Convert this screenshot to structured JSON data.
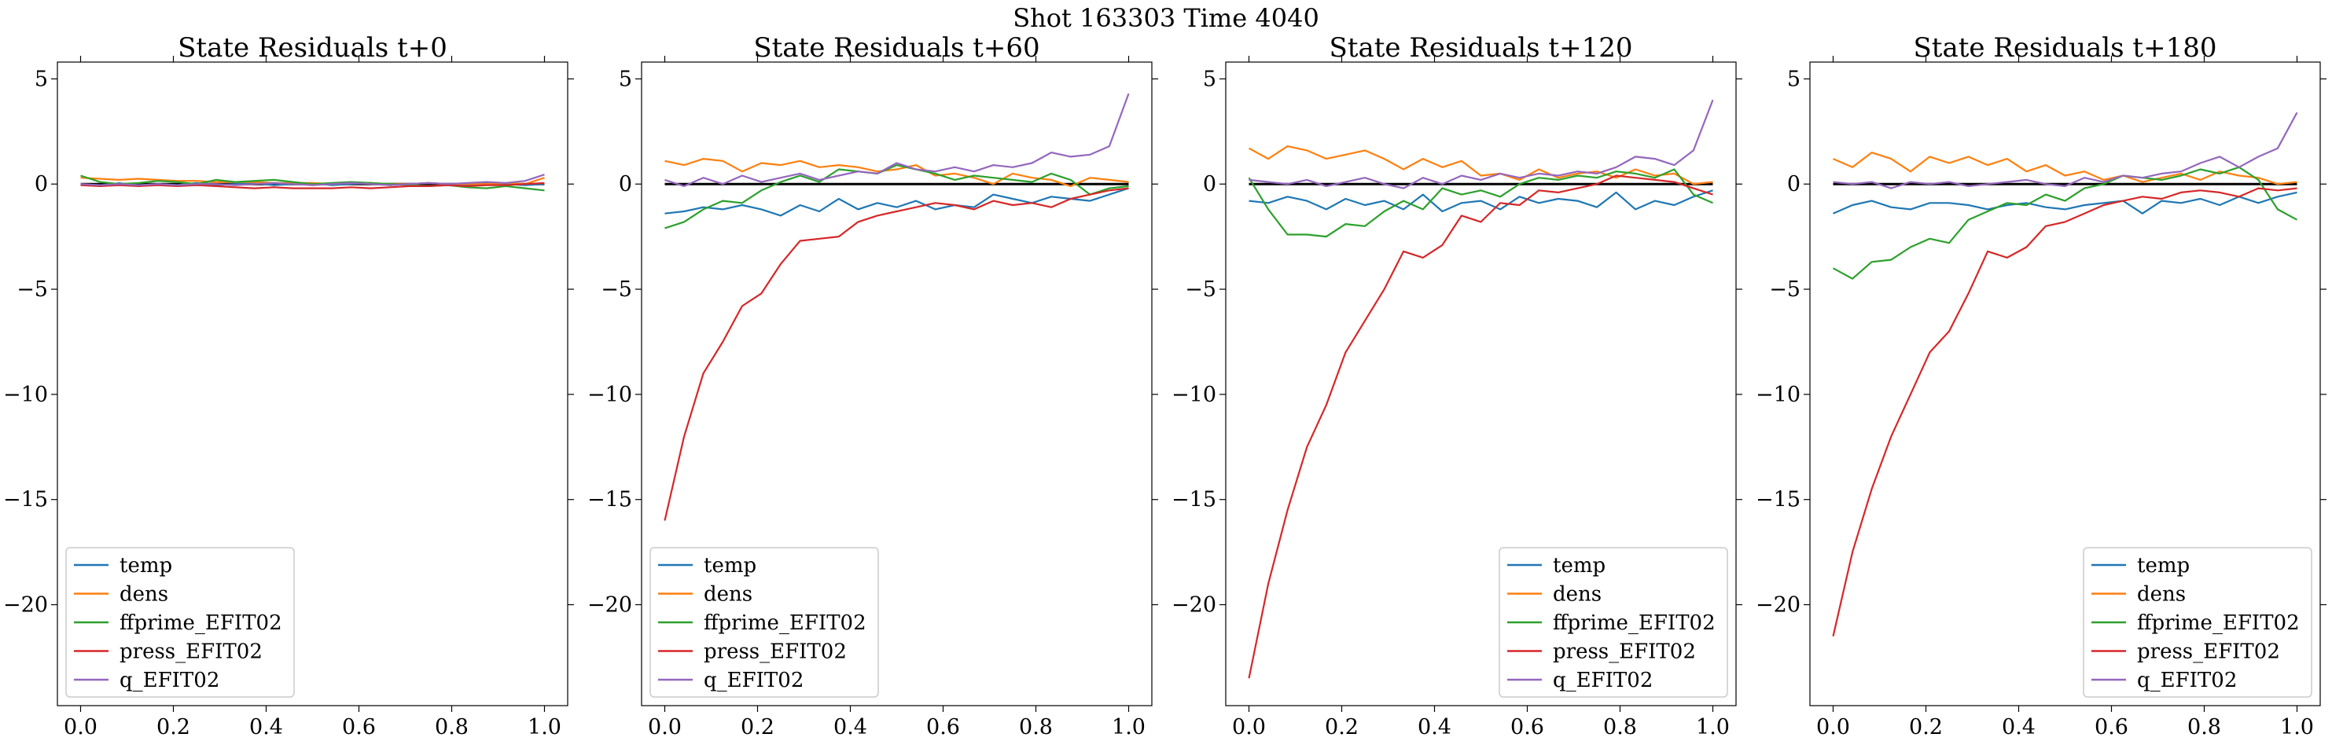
{
  "figure": {
    "suptitle": "Shot 163303   Time 4040"
  },
  "chart_data": [
    {
      "type": "line",
      "title": "State Residuals t+0",
      "xlabel": "",
      "ylabel": "",
      "xlim": [
        -0.05,
        1.05
      ],
      "ylim": [
        -24.8,
        5.8
      ],
      "xticks": [
        0.0,
        0.2,
        0.4,
        0.6,
        0.8,
        1.0
      ],
      "xtick_labels": [
        "0.0",
        "0.2",
        "0.4",
        "0.6",
        "0.8",
        "1.0"
      ],
      "yticks": [
        5,
        0,
        -5,
        -10,
        -15,
        -20
      ],
      "ytick_labels": [
        "5",
        "0",
        "−5",
        "−10",
        "−15",
        "−20"
      ],
      "reference_line": 0,
      "legend": "lower-left",
      "x": [
        0.0,
        0.0417,
        0.0833,
        0.125,
        0.1667,
        0.2083,
        0.25,
        0.2917,
        0.3333,
        0.375,
        0.4167,
        0.4583,
        0.5,
        0.5417,
        0.5833,
        0.625,
        0.6667,
        0.7083,
        0.75,
        0.7917,
        0.8333,
        0.875,
        0.9167,
        0.9583,
        1.0
      ],
      "series": [
        {
          "name": "temp",
          "color": "#1f77b4",
          "values": [
            0.0,
            -0.1,
            0.05,
            -0.1,
            0.0,
            -0.05,
            0.05,
            -0.05,
            0.0,
            0.05,
            -0.05,
            0.0,
            0.05,
            -0.05,
            0.0,
            0.05,
            -0.05,
            0.0,
            0.05,
            0.0,
            -0.05,
            0.05,
            0.0,
            -0.05,
            0.0
          ]
        },
        {
          "name": "dens",
          "color": "#ff7f0e",
          "values": [
            0.3,
            0.25,
            0.2,
            0.25,
            0.2,
            0.15,
            0.15,
            0.1,
            0.1,
            0.1,
            0.05,
            0.05,
            0.05,
            0.0,
            0.05,
            0.05,
            0.0,
            0.0,
            0.05,
            0.0,
            0.0,
            0.0,
            0.05,
            0.0,
            0.3
          ]
        },
        {
          "name": "ffprime_EFIT02",
          "color": "#2ca02c",
          "values": [
            0.4,
            0.1,
            0.0,
            0.05,
            0.15,
            0.1,
            0.0,
            0.2,
            0.1,
            0.15,
            0.2,
            0.1,
            0.0,
            0.05,
            0.1,
            0.05,
            0.0,
            -0.05,
            -0.1,
            -0.05,
            -0.15,
            -0.2,
            -0.1,
            -0.2,
            -0.3
          ]
        },
        {
          "name": "press_EFIT02",
          "color": "#d62728",
          "values": [
            -0.05,
            -0.1,
            -0.05,
            -0.1,
            -0.05,
            -0.1,
            -0.05,
            -0.1,
            -0.15,
            -0.2,
            -0.15,
            -0.2,
            -0.2,
            -0.2,
            -0.15,
            -0.2,
            -0.15,
            -0.1,
            -0.1,
            -0.05,
            -0.1,
            -0.05,
            -0.05,
            0.0,
            0.05
          ]
        },
        {
          "name": "q_EFIT02",
          "color": "#9467bd",
          "values": [
            0.0,
            -0.05,
            0.0,
            -0.05,
            0.0,
            -0.05,
            0.0,
            0.0,
            -0.05,
            0.0,
            0.05,
            0.0,
            -0.05,
            0.0,
            0.05,
            0.0,
            -0.05,
            0.0,
            0.05,
            0.0,
            0.05,
            0.1,
            0.05,
            0.15,
            0.45
          ]
        }
      ]
    },
    {
      "type": "line",
      "title": "State Residuals t+60",
      "xlabel": "",
      "ylabel": "",
      "xlim": [
        -0.05,
        1.05
      ],
      "ylim": [
        -24.8,
        5.8
      ],
      "xticks": [
        0.0,
        0.2,
        0.4,
        0.6,
        0.8,
        1.0
      ],
      "xtick_labels": [
        "0.0",
        "0.2",
        "0.4",
        "0.6",
        "0.8",
        "1.0"
      ],
      "yticks": [
        5,
        0,
        -5,
        -10,
        -15,
        -20
      ],
      "ytick_labels": [
        "5",
        "0",
        "−5",
        "−10",
        "−15",
        "−20"
      ],
      "reference_line": 0,
      "legend": "lower-left",
      "x": [
        0.0,
        0.0417,
        0.0833,
        0.125,
        0.1667,
        0.2083,
        0.25,
        0.2917,
        0.3333,
        0.375,
        0.4167,
        0.4583,
        0.5,
        0.5417,
        0.5833,
        0.625,
        0.6667,
        0.7083,
        0.75,
        0.7917,
        0.8333,
        0.875,
        0.9167,
        0.9583,
        1.0
      ],
      "series": [
        {
          "name": "temp",
          "color": "#1f77b4",
          "values": [
            -1.4,
            -1.3,
            -1.1,
            -1.2,
            -1.0,
            -1.2,
            -1.5,
            -1.0,
            -1.3,
            -0.7,
            -1.2,
            -0.9,
            -1.1,
            -0.8,
            -1.2,
            -1.0,
            -1.1,
            -0.5,
            -0.7,
            -0.9,
            -0.6,
            -0.7,
            -0.8,
            -0.5,
            -0.2
          ]
        },
        {
          "name": "dens",
          "color": "#ff7f0e",
          "values": [
            1.1,
            0.9,
            1.2,
            1.1,
            0.6,
            1.0,
            0.9,
            1.1,
            0.8,
            0.9,
            0.8,
            0.6,
            0.7,
            0.9,
            0.4,
            0.5,
            0.3,
            0.0,
            0.5,
            0.3,
            0.2,
            -0.1,
            0.3,
            0.2,
            0.1
          ]
        },
        {
          "name": "ffprime_EFIT02",
          "color": "#2ca02c",
          "values": [
            -2.1,
            -1.8,
            -1.2,
            -0.8,
            -0.9,
            -0.3,
            0.1,
            0.4,
            0.1,
            0.7,
            0.6,
            0.5,
            0.9,
            0.7,
            0.5,
            0.2,
            0.4,
            0.3,
            0.2,
            0.1,
            0.5,
            0.2,
            -0.5,
            -0.2,
            -0.1
          ]
        },
        {
          "name": "press_EFIT02",
          "color": "#d62728",
          "values": [
            -16.0,
            -12.0,
            -9.0,
            -7.5,
            -5.8,
            -5.2,
            -3.8,
            -2.7,
            -2.6,
            -2.5,
            -1.8,
            -1.5,
            -1.3,
            -1.1,
            -0.9,
            -1.0,
            -1.2,
            -0.8,
            -1.0,
            -0.9,
            -1.1,
            -0.7,
            -0.5,
            -0.3,
            -0.2
          ]
        },
        {
          "name": "q_EFIT02",
          "color": "#9467bd",
          "values": [
            0.2,
            -0.1,
            0.3,
            0.0,
            0.4,
            0.1,
            0.3,
            0.5,
            0.2,
            0.4,
            0.6,
            0.5,
            1.0,
            0.7,
            0.6,
            0.8,
            0.6,
            0.9,
            0.8,
            1.0,
            1.5,
            1.3,
            1.4,
            1.8,
            4.3
          ]
        }
      ]
    },
    {
      "type": "line",
      "title": "State Residuals t+120",
      "xlabel": "",
      "ylabel": "",
      "xlim": [
        -0.05,
        1.05
      ],
      "ylim": [
        -24.8,
        5.8
      ],
      "xticks": [
        0.0,
        0.2,
        0.4,
        0.6,
        0.8,
        1.0
      ],
      "xtick_labels": [
        "0.0",
        "0.2",
        "0.4",
        "0.6",
        "0.8",
        "1.0"
      ],
      "yticks": [
        5,
        0,
        -5,
        -10,
        -15,
        -20
      ],
      "ytick_labels": [
        "5",
        "0",
        "−5",
        "−10",
        "−15",
        "−20"
      ],
      "reference_line": 0,
      "legend": "lower-right",
      "x": [
        0.0,
        0.0417,
        0.0833,
        0.125,
        0.1667,
        0.2083,
        0.25,
        0.2917,
        0.3333,
        0.375,
        0.4167,
        0.4583,
        0.5,
        0.5417,
        0.5833,
        0.625,
        0.6667,
        0.7083,
        0.75,
        0.7917,
        0.8333,
        0.875,
        0.9167,
        0.9583,
        1.0
      ],
      "series": [
        {
          "name": "temp",
          "color": "#1f77b4",
          "values": [
            -0.8,
            -0.9,
            -0.6,
            -0.8,
            -1.2,
            -0.7,
            -1.0,
            -0.8,
            -1.2,
            -0.5,
            -1.3,
            -0.9,
            -0.8,
            -1.2,
            -0.6,
            -0.9,
            -0.7,
            -0.8,
            -1.1,
            -0.4,
            -1.2,
            -0.8,
            -1.0,
            -0.6,
            -0.3
          ]
        },
        {
          "name": "dens",
          "color": "#ff7f0e",
          "values": [
            1.7,
            1.2,
            1.8,
            1.6,
            1.2,
            1.4,
            1.6,
            1.2,
            0.7,
            1.2,
            0.8,
            1.1,
            0.4,
            0.5,
            0.2,
            0.7,
            0.3,
            0.5,
            0.6,
            0.3,
            0.7,
            0.4,
            0.5,
            0.0,
            0.1
          ]
        },
        {
          "name": "ffprime_EFIT02",
          "color": "#2ca02c",
          "values": [
            0.3,
            -1.2,
            -2.4,
            -2.4,
            -2.5,
            -1.9,
            -2.0,
            -1.3,
            -0.8,
            -1.2,
            -0.2,
            -0.5,
            -0.3,
            -0.6,
            0.0,
            0.3,
            0.2,
            0.4,
            0.3,
            0.6,
            0.5,
            0.3,
            0.7,
            -0.5,
            -0.9
          ]
        },
        {
          "name": "press_EFIT02",
          "color": "#d62728",
          "values": [
            -23.5,
            -19.0,
            -15.5,
            -12.5,
            -10.5,
            -8.0,
            -6.5,
            -5.0,
            -3.2,
            -3.5,
            -2.9,
            -1.5,
            -1.8,
            -0.9,
            -1.0,
            -0.3,
            -0.4,
            -0.2,
            0.0,
            0.4,
            0.3,
            0.2,
            0.1,
            -0.2,
            -0.5
          ]
        },
        {
          "name": "q_EFIT02",
          "color": "#9467bd",
          "values": [
            0.2,
            0.1,
            0.0,
            0.2,
            -0.1,
            0.1,
            0.3,
            0.0,
            -0.2,
            0.3,
            0.0,
            0.4,
            0.2,
            0.5,
            0.3,
            0.5,
            0.4,
            0.6,
            0.5,
            0.8,
            1.3,
            1.2,
            0.9,
            1.6,
            4.0
          ]
        }
      ]
    },
    {
      "type": "line",
      "title": "State Residuals t+180",
      "xlabel": "",
      "ylabel": "",
      "xlim": [
        -0.05,
        1.05
      ],
      "ylim": [
        -24.8,
        5.8
      ],
      "xticks": [
        0.0,
        0.2,
        0.4,
        0.6,
        0.8,
        1.0
      ],
      "xtick_labels": [
        "0.0",
        "0.2",
        "0.4",
        "0.6",
        "0.8",
        "1.0"
      ],
      "yticks": [
        5,
        0,
        -5,
        -10,
        -15,
        -20
      ],
      "ytick_labels": [
        "5",
        "0",
        "−5",
        "−10",
        "−15",
        "−20"
      ],
      "reference_line": 0,
      "legend": "lower-right",
      "x": [
        0.0,
        0.0417,
        0.0833,
        0.125,
        0.1667,
        0.2083,
        0.25,
        0.2917,
        0.3333,
        0.375,
        0.4167,
        0.4583,
        0.5,
        0.5417,
        0.5833,
        0.625,
        0.6667,
        0.7083,
        0.75,
        0.7917,
        0.8333,
        0.875,
        0.9167,
        0.9583,
        1.0
      ],
      "series": [
        {
          "name": "temp",
          "color": "#1f77b4",
          "values": [
            -1.4,
            -1.0,
            -0.8,
            -1.1,
            -1.2,
            -0.9,
            -0.9,
            -1.0,
            -1.2,
            -1.0,
            -0.9,
            -1.1,
            -1.2,
            -1.0,
            -0.9,
            -0.8,
            -1.4,
            -0.8,
            -0.9,
            -0.7,
            -1.0,
            -0.6,
            -0.9,
            -0.6,
            -0.4
          ]
        },
        {
          "name": "dens",
          "color": "#ff7f0e",
          "values": [
            1.2,
            0.8,
            1.5,
            1.2,
            0.6,
            1.3,
            1.0,
            1.3,
            0.9,
            1.2,
            0.6,
            0.9,
            0.4,
            0.6,
            0.2,
            0.4,
            0.1,
            0.3,
            0.5,
            0.2,
            0.6,
            0.4,
            0.3,
            0.0,
            0.1
          ]
        },
        {
          "name": "ffprime_EFIT02",
          "color": "#2ca02c",
          "values": [
            -4.0,
            -4.5,
            -3.7,
            -3.6,
            -3.0,
            -2.6,
            -2.8,
            -1.7,
            -1.3,
            -0.9,
            -1.0,
            -0.5,
            -0.8,
            -0.2,
            0.0,
            0.4,
            0.3,
            0.2,
            0.4,
            0.7,
            0.5,
            0.8,
            0.2,
            -1.2,
            -1.7
          ]
        },
        {
          "name": "press_EFIT02",
          "color": "#d62728",
          "values": [
            -21.5,
            -17.5,
            -14.5,
            -12.0,
            -10.0,
            -8.0,
            -7.0,
            -5.2,
            -3.2,
            -3.5,
            -3.0,
            -2.0,
            -1.8,
            -1.4,
            -1.0,
            -0.8,
            -0.6,
            -0.7,
            -0.4,
            -0.3,
            -0.4,
            -0.6,
            -0.2,
            -0.3,
            -0.2
          ]
        },
        {
          "name": "q_EFIT02",
          "color": "#9467bd",
          "values": [
            0.1,
            0.0,
            0.1,
            -0.2,
            0.1,
            0.0,
            0.1,
            -0.1,
            0.0,
            0.1,
            0.2,
            0.0,
            -0.1,
            0.3,
            0.1,
            0.4,
            0.3,
            0.5,
            0.6,
            1.0,
            1.3,
            0.8,
            1.3,
            1.7,
            3.4
          ]
        }
      ]
    }
  ]
}
